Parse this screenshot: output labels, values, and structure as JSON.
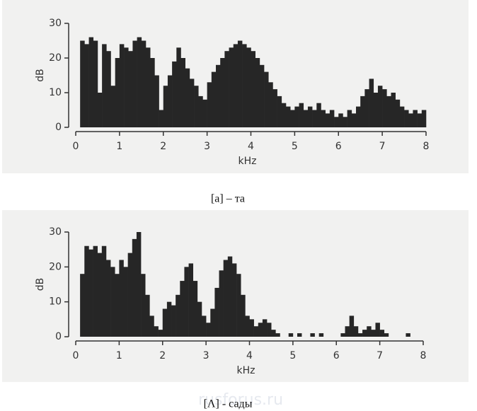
{
  "chart_data": [
    {
      "type": "bar",
      "y_label": "dB",
      "x_label": "kHz",
      "caption": "[a] – та",
      "color": "#262626",
      "x": [
        0.2,
        0.3,
        0.4,
        0.5,
        0.6,
        0.7,
        0.8,
        0.9,
        1.0,
        1.1,
        1.2,
        1.3,
        1.4,
        1.5,
        1.6,
        1.7,
        1.8,
        1.9,
        2.0,
        2.1,
        2.2,
        2.3,
        2.4,
        2.5,
        2.6,
        2.7,
        2.8,
        2.9,
        3.0,
        3.1,
        3.2,
        3.3,
        3.4,
        3.5,
        3.6,
        3.7,
        3.8,
        3.9,
        4.0,
        4.1,
        4.2,
        4.3,
        4.4,
        4.5,
        4.6,
        4.7,
        4.8,
        4.9,
        5.0,
        5.1,
        5.2,
        5.3,
        5.4,
        5.5,
        5.6,
        5.7,
        5.8,
        5.9,
        6.0,
        6.1,
        6.2,
        6.3,
        6.4,
        6.5,
        6.6,
        6.7,
        6.8,
        6.9,
        7.0,
        7.1,
        7.2,
        7.3,
        7.4,
        7.5,
        7.6,
        7.7,
        7.8,
        7.9,
        8.0
      ],
      "values": [
        25,
        24,
        26,
        25,
        10,
        24,
        22,
        12,
        20,
        24,
        23,
        22,
        25,
        26,
        25,
        23,
        20,
        15,
        5,
        12,
        15,
        19,
        23,
        20,
        17,
        14,
        12,
        9,
        8,
        13,
        16,
        18,
        20,
        22,
        23,
        24,
        25,
        24,
        23,
        22,
        20,
        18,
        16,
        13,
        11,
        9,
        7,
        6,
        5,
        6,
        7,
        5,
        6,
        5,
        7,
        5,
        4,
        5,
        3,
        4,
        3,
        5,
        4,
        6,
        9,
        11,
        14,
        10,
        12,
        11,
        9,
        10,
        8,
        6,
        5,
        4,
        5,
        4,
        5
      ],
      "xlim": [
        0,
        8
      ],
      "xticks": [
        0,
        1,
        2,
        3,
        4,
        5,
        6,
        7,
        8
      ],
      "ylim": [
        0,
        30
      ],
      "yticks": [
        0,
        10,
        20,
        30
      ]
    },
    {
      "type": "bar",
      "y_label": "dB",
      "x_label": "kHz",
      "caption": "[Λ] - сады",
      "color": "#262626",
      "x": [
        0.2,
        0.3,
        0.4,
        0.5,
        0.6,
        0.7,
        0.8,
        0.9,
        1.0,
        1.1,
        1.2,
        1.3,
        1.4,
        1.5,
        1.6,
        1.7,
        1.8,
        1.9,
        2.0,
        2.1,
        2.2,
        2.3,
        2.4,
        2.5,
        2.6,
        2.7,
        2.8,
        2.9,
        3.0,
        3.1,
        3.2,
        3.3,
        3.4,
        3.5,
        3.6,
        3.7,
        3.8,
        3.9,
        4.0,
        4.1,
        4.2,
        4.3,
        4.4,
        4.5,
        4.6,
        4.7,
        4.8,
        4.9,
        5.0,
        5.1,
        5.2,
        5.3,
        5.4,
        5.5,
        5.6,
        5.7,
        5.8,
        5.9,
        6.0,
        6.1,
        6.2,
        6.3,
        6.4,
        6.5,
        6.6,
        6.7,
        6.8,
        6.9,
        7.0,
        7.1,
        7.2,
        7.3,
        7.4,
        7.5,
        7.6,
        7.7,
        7.8,
        7.9,
        8.0
      ],
      "values": [
        18,
        26,
        25,
        26,
        24,
        26,
        22,
        20,
        18,
        22,
        20,
        24,
        28,
        30,
        18,
        12,
        6,
        3,
        2,
        8,
        10,
        9,
        12,
        16,
        20,
        21,
        16,
        10,
        6,
        4,
        8,
        14,
        19,
        22,
        23,
        21,
        18,
        12,
        6,
        5,
        3,
        4,
        5,
        4,
        2,
        1,
        0,
        0,
        1,
        0,
        1,
        0,
        0,
        1,
        0,
        1,
        0,
        0,
        0,
        0,
        1,
        3,
        6,
        3,
        1,
        2,
        3,
        2,
        4,
        2,
        1,
        0,
        0,
        0,
        0,
        1,
        0,
        0,
        0
      ],
      "xlim": [
        0,
        8
      ],
      "xticks": [
        0,
        1,
        2,
        3,
        4,
        5,
        6,
        7,
        8
      ],
      "ylim": [
        0,
        30
      ],
      "yticks": [
        0,
        10,
        20,
        30
      ]
    }
  ],
  "watermark": "rusforus.ru"
}
